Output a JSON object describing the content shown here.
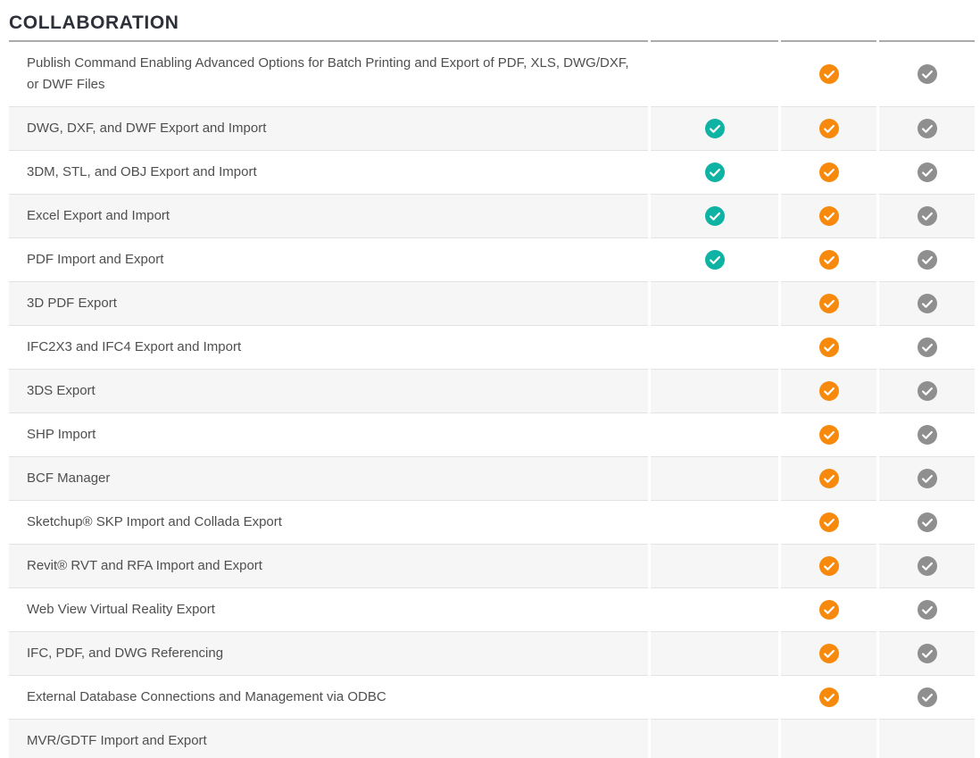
{
  "page": {
    "title": "COLLABORATION"
  },
  "colors": {
    "teal": "#0FB3A3",
    "orange": "#F78A0D",
    "gray": "#8F8F8F",
    "row_alt_bg": "#F6F6F6",
    "top_border": "#ABABAB",
    "row_border": "#E3E3E3",
    "title_text": "#2D3038",
    "feature_text": "#4F4F4F",
    "check_glyph": "#FFFFFF"
  },
  "table": {
    "columns": [
      {
        "id": "column-1",
        "check": "teal"
      },
      {
        "id": "column-2",
        "check": "orange"
      },
      {
        "id": "column-3",
        "check": "gray"
      }
    ],
    "check_icon": "check-circle",
    "rows": [
      {
        "feature": "Publish Command Enabling Advanced Options for Batch Printing and Export of PDF, XLS, DWG/DXF, or DWF Files",
        "checks": [
          false,
          true,
          true
        ]
      },
      {
        "feature": "DWG, DXF, and DWF Export and Import",
        "checks": [
          true,
          true,
          true
        ]
      },
      {
        "feature": "3DM, STL, and OBJ Export and Import",
        "checks": [
          true,
          true,
          true
        ]
      },
      {
        "feature": "Excel Export and Import",
        "checks": [
          true,
          true,
          true
        ]
      },
      {
        "feature": "PDF Import and Export",
        "checks": [
          true,
          true,
          true
        ]
      },
      {
        "feature": "3D PDF Export",
        "checks": [
          false,
          true,
          true
        ]
      },
      {
        "feature": "IFC2X3 and IFC4 Export and Import",
        "checks": [
          false,
          true,
          true
        ]
      },
      {
        "feature": "3DS Export",
        "checks": [
          false,
          true,
          true
        ]
      },
      {
        "feature": "SHP Import",
        "checks": [
          false,
          true,
          true
        ]
      },
      {
        "feature": "BCF Manager",
        "checks": [
          false,
          true,
          true
        ]
      },
      {
        "feature": "Sketchup® SKP Import and Collada Export",
        "checks": [
          false,
          true,
          true
        ]
      },
      {
        "feature": "Revit® RVT and RFA Import and Export",
        "checks": [
          false,
          true,
          true
        ]
      },
      {
        "feature": "Web View Virtual Reality Export",
        "checks": [
          false,
          true,
          true
        ]
      },
      {
        "feature": "IFC, PDF, and DWG Referencing",
        "checks": [
          false,
          true,
          true
        ]
      },
      {
        "feature": "External Database Connections and Management via ODBC",
        "checks": [
          false,
          true,
          true
        ]
      },
      {
        "feature": "MVR/GDTF Import and Export",
        "checks": [
          false,
          false,
          false
        ]
      }
    ]
  }
}
